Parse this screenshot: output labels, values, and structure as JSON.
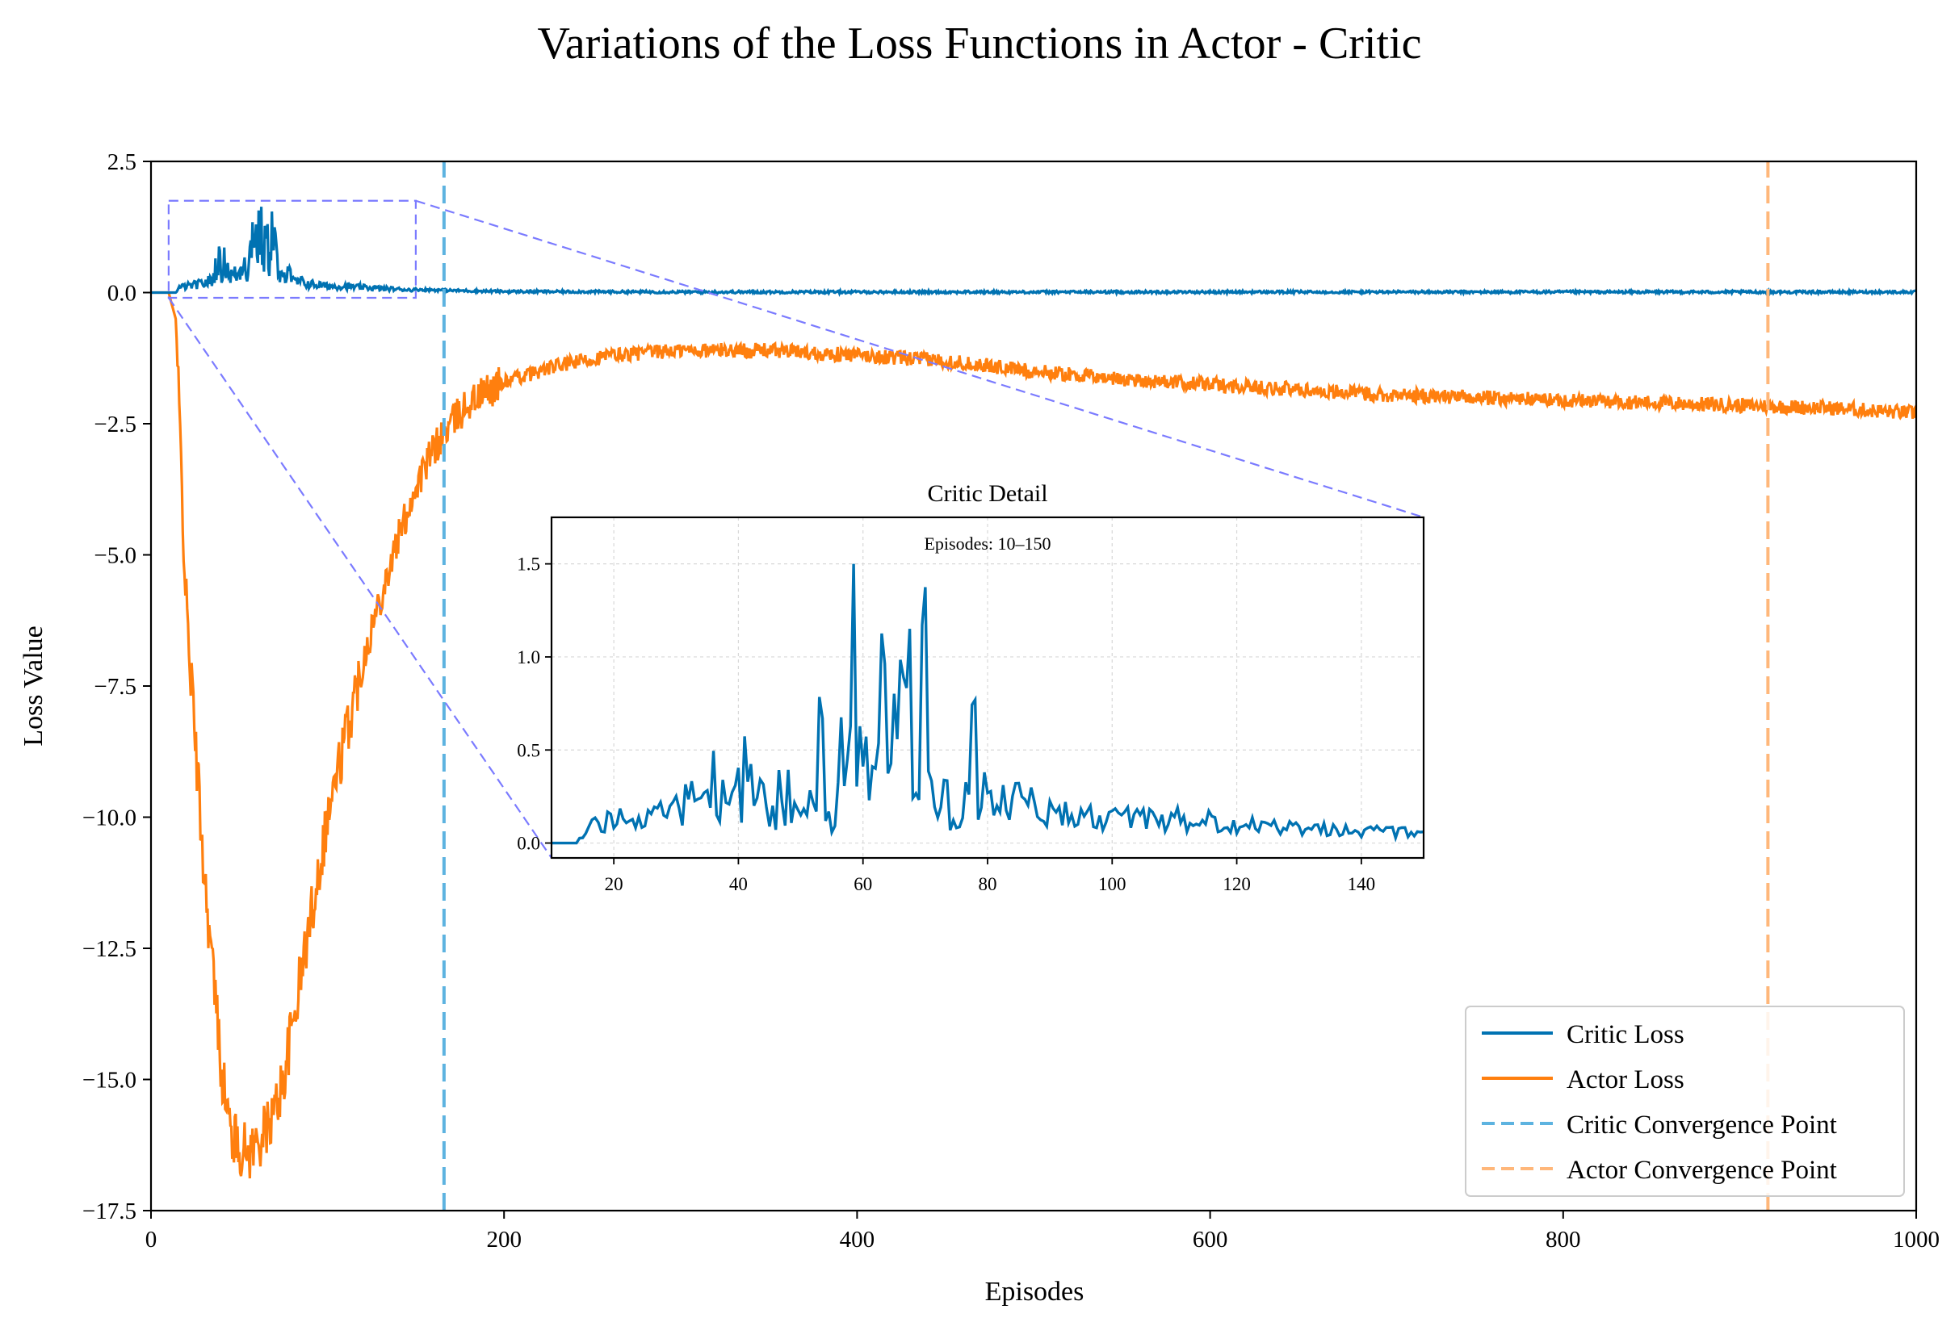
{
  "chart_data": {
    "type": "line",
    "title": "Variations of the Loss Functions in Actor - Critic",
    "xlabel": "Episodes",
    "ylabel": "Loss Value",
    "xlim": [
      0,
      1000
    ],
    "ylim": [
      -17.5,
      2.5
    ],
    "x_ticks": [
      0,
      200,
      400,
      600,
      800,
      1000
    ],
    "y_ticks": [
      2.5,
      0.0,
      -2.5,
      -5.0,
      -7.5,
      -10.0,
      -12.5,
      -15.0,
      -17.5
    ],
    "y_tick_labels": [
      "2.5",
      "0.0",
      "−2.5",
      "−5.0",
      "−7.5",
      "−10.0",
      "−12.5",
      "−15.0",
      "−17.5"
    ],
    "grid": false,
    "legend_position": "bottom-right",
    "colors": {
      "critic": "#0072b2",
      "actor": "#ff7f0e",
      "critic_conv": "#5db3e0",
      "actor_conv": "#ffb77a",
      "zoom": "#7b7bff"
    },
    "series": [
      {
        "name": "Critic Loss",
        "style": "solid",
        "x": [
          0,
          14,
          16,
          20,
          25,
          30,
          35,
          38,
          40,
          42,
          45,
          50,
          53,
          55,
          57,
          58,
          60,
          62,
          64,
          65,
          67,
          68,
          70,
          72,
          75,
          78,
          80,
          85,
          90,
          95,
          100,
          110,
          120,
          130,
          140,
          150,
          170,
          200,
          300,
          400,
          600,
          800,
          1000
        ],
        "y": [
          0.0,
          0.0,
          0.12,
          0.15,
          0.18,
          0.22,
          0.3,
          0.85,
          0.45,
          0.8,
          0.4,
          0.45,
          0.9,
          0.35,
          1.4,
          1.65,
          1.1,
          1.5,
          0.85,
          1.35,
          0.8,
          1.45,
          1.35,
          0.4,
          0.3,
          0.8,
          0.25,
          0.25,
          0.2,
          0.18,
          0.15,
          0.15,
          0.12,
          0.1,
          0.08,
          0.06,
          0.04,
          0.02,
          0.01,
          0.01,
          0.01,
          0.01,
          0.01
        ]
      },
      {
        "name": "Actor Loss",
        "style": "solid",
        "x": [
          0,
          10,
          14,
          20,
          30,
          40,
          45,
          50,
          55,
          60,
          65,
          70,
          75,
          80,
          90,
          100,
          110,
          120,
          130,
          140,
          150,
          160,
          170,
          180,
          200,
          230,
          260,
          300,
          350,
          400,
          450,
          500,
          550,
          600,
          650,
          700,
          750,
          800,
          850,
          900,
          950,
          1000
        ],
        "y": [
          0.0,
          0.0,
          -0.5,
          -6.0,
          -11.0,
          -14.8,
          -16.0,
          -16.3,
          -16.4,
          -16.2,
          -16.0,
          -15.6,
          -15.0,
          -14.0,
          -12.0,
          -10.0,
          -8.5,
          -7.0,
          -5.8,
          -4.7,
          -3.7,
          -3.0,
          -2.5,
          -2.1,
          -1.7,
          -1.4,
          -1.2,
          -1.1,
          -1.1,
          -1.2,
          -1.3,
          -1.5,
          -1.65,
          -1.75,
          -1.85,
          -1.95,
          -2.0,
          -2.05,
          -2.1,
          -2.15,
          -2.2,
          -2.3
        ]
      },
      {
        "name": "Critic Convergence Point",
        "style": "dashed",
        "x": [
          166,
          166
        ],
        "y": [
          -17.5,
          2.5
        ]
      },
      {
        "name": "Actor Convergence Point",
        "style": "dashed",
        "x": [
          916,
          916
        ],
        "y": [
          -17.5,
          2.5
        ]
      }
    ],
    "zoom_region": {
      "x": [
        10,
        150
      ],
      "y": [
        -0.1,
        1.75
      ]
    },
    "inset": {
      "title": "Critic Detail",
      "annotation": "Episodes: 10–150",
      "xlim": [
        10,
        150
      ],
      "ylim": [
        -0.08,
        1.75
      ],
      "x_ticks": [
        20,
        40,
        60,
        80,
        100,
        120,
        140
      ],
      "y_ticks": [
        0.0,
        0.5,
        1.0,
        1.5
      ],
      "y_tick_labels": [
        "0.0",
        "0.5",
        "1.0",
        "1.5"
      ],
      "grid": true
    }
  }
}
